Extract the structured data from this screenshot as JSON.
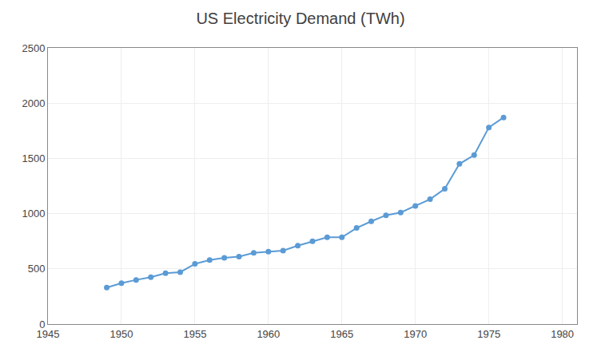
{
  "chart_data": {
    "type": "line",
    "title": "US Electricity Demand (TWh)",
    "x": [
      1949,
      1950,
      1951,
      1952,
      1953,
      1954,
      1955,
      1956,
      1957,
      1958,
      1959,
      1960,
      1961,
      1962,
      1963,
      1964,
      1965,
      1966,
      1967,
      1968,
      1969,
      1970,
      1971,
      1972,
      1973,
      1974,
      1975,
      1976
    ],
    "values": [
      330,
      370,
      400,
      425,
      460,
      470,
      545,
      580,
      600,
      610,
      645,
      655,
      665,
      710,
      750,
      785,
      785,
      870,
      930,
      985,
      1010,
      1070,
      1130,
      1225,
      1450,
      1530,
      1780,
      1870
    ],
    "color": "#5B9BD5",
    "marker": "circle",
    "xlim": [
      1945,
      1981
    ],
    "ylim": [
      0,
      2500
    ],
    "xticks": [
      1945,
      1950,
      1955,
      1960,
      1965,
      1970,
      1975,
      1980
    ],
    "yticks": [
      0,
      500,
      1000,
      1500,
      2000,
      2500
    ],
    "grid": true
  }
}
